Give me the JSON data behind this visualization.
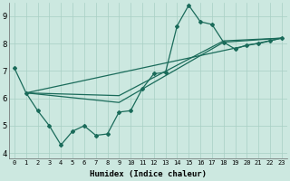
{
  "xlabel": "Humidex (Indice chaleur)",
  "background_color": "#cce8e0",
  "line_color": "#1a6b5a",
  "xlim": [
    -0.5,
    23.5
  ],
  "ylim": [
    3.8,
    9.5
  ],
  "yticks": [
    4,
    5,
    6,
    7,
    8,
    9
  ],
  "xticks": [
    0,
    1,
    2,
    3,
    4,
    5,
    6,
    7,
    8,
    9,
    10,
    11,
    12,
    13,
    14,
    15,
    16,
    17,
    18,
    19,
    20,
    21,
    22,
    23
  ],
  "line1_x": [
    0,
    1,
    2,
    3,
    4,
    5,
    6,
    7,
    8,
    9,
    10,
    11,
    12,
    13,
    14,
    15,
    16,
    17,
    18,
    19,
    20,
    21,
    22,
    23
  ],
  "line1_y": [
    7.1,
    6.2,
    5.55,
    5.0,
    4.3,
    4.8,
    5.0,
    4.65,
    4.7,
    5.5,
    5.55,
    6.35,
    6.9,
    6.95,
    8.65,
    9.4,
    8.8,
    8.7,
    8.05,
    7.8,
    7.95,
    8.0,
    8.1,
    8.2
  ],
  "line2_x": [
    1,
    23
  ],
  "line2_y": [
    6.2,
    8.2
  ],
  "line3_x": [
    1,
    9,
    18,
    23
  ],
  "line3_y": [
    6.2,
    5.85,
    8.05,
    8.2
  ],
  "line4_x": [
    1,
    9,
    18,
    23
  ],
  "line4_y": [
    6.2,
    6.1,
    8.1,
    8.2
  ]
}
